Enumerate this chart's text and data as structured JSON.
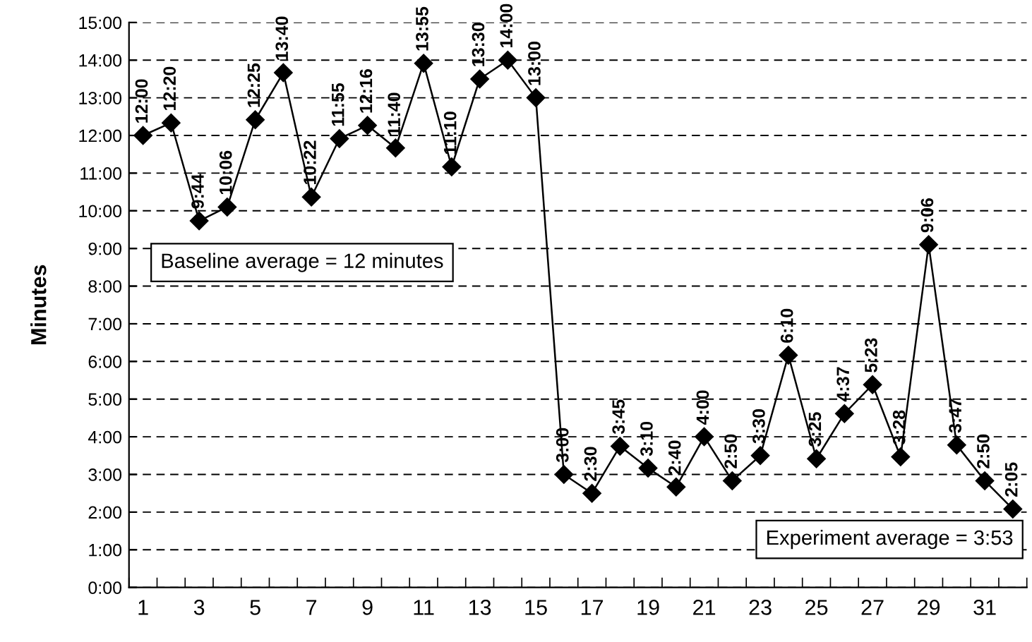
{
  "chart_data": {
    "type": "line",
    "ylabel": "Minutes",
    "categories": [
      "1",
      null,
      "3",
      null,
      "5",
      null,
      "7",
      null,
      "9",
      null,
      "11",
      null,
      "13",
      null,
      "15",
      null,
      "17",
      null,
      "19",
      null,
      "21",
      null,
      "23",
      null,
      "25",
      null,
      "27",
      null,
      "29",
      null,
      "31",
      null
    ],
    "series": [
      {
        "color": "#000000",
        "values": [
          12,
          12.3333,
          9.7333,
          10.1,
          12.4167,
          13.6667,
          10.3667,
          11.9167,
          12.2667,
          11.6667,
          13.9167,
          11.1667,
          13.5,
          14,
          13,
          3,
          2.5,
          3.75,
          3.1667,
          2.6667,
          4,
          2.8333,
          3.5,
          6.1667,
          3.4167,
          4.6167,
          5.3833,
          3.4667,
          9.1,
          3.7833,
          2.8333,
          2.0833
        ],
        "value_labels": [
          "12:00",
          "12:20",
          "9:44",
          "10:06",
          "12:25",
          "13:40",
          "10:22",
          "11:55",
          "12:16",
          "11:40",
          "13:55",
          "11:10",
          "13:30",
          "14:00",
          "13:00",
          "3:00",
          "2:30",
          "3:45",
          "3:10",
          "2:40",
          "4:00",
          "2:50",
          "3:30",
          "6:10",
          "3:25",
          "4:37",
          "5:23",
          "3:28",
          "9:06",
          "3:47",
          "2:50",
          "2:05"
        ]
      }
    ],
    "ylim": [
      0,
      15
    ],
    "yticks": [
      {
        "value": 0,
        "label": "0:00"
      },
      {
        "value": 1,
        "label": "1:00"
      },
      {
        "value": 2,
        "label": "2:00"
      },
      {
        "value": 3,
        "label": "3:00"
      },
      {
        "value": 4,
        "label": "4:00"
      },
      {
        "value": 5,
        "label": "5:00"
      },
      {
        "value": 6,
        "label": "6:00"
      },
      {
        "value": 7,
        "label": "7:00"
      },
      {
        "value": 8,
        "label": "8:00"
      },
      {
        "value": 9,
        "label": "9:00"
      },
      {
        "value": 10,
        "label": "10:00"
      },
      {
        "value": 11,
        "label": "11:00"
      },
      {
        "value": 12,
        "label": "12:00"
      },
      {
        "value": 13,
        "label": "13:00"
      },
      {
        "value": 14,
        "label": "14:00"
      },
      {
        "value": 15,
        "label": "15:00"
      }
    ],
    "annotations": [
      "Baseline average = 12 minutes",
      "Experiment average = 3:53"
    ],
    "grid": "y",
    "marker": "diamond",
    "line_style": "solid",
    "legend": false
  }
}
